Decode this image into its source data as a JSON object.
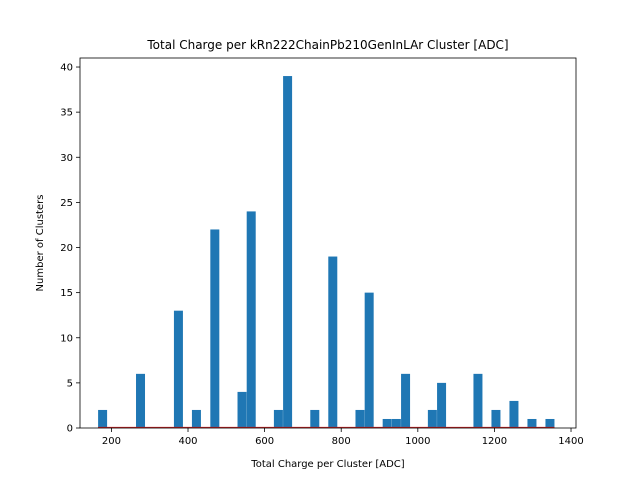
{
  "chart_data": {
    "type": "bar",
    "title": "Total Charge per kRn222ChainPb210GenInLAr Cluster [ADC]",
    "xlabel": "Total Charge per Cluster [ADC]",
    "ylabel": "Number of Clusters",
    "xlim": [
      118,
      1413
    ],
    "ylim": [
      0,
      41
    ],
    "xticks": [
      200,
      400,
      600,
      800,
      1000,
      1200,
      1400
    ],
    "yticks": [
      0,
      5,
      10,
      15,
      20,
      25,
      30,
      35,
      40
    ],
    "bar_color": "#1f77b4",
    "baseline_color": "#d62728",
    "bin_width": 23.5,
    "bins": [
      {
        "x": 177,
        "value": 2
      },
      {
        "x": 276,
        "value": 6
      },
      {
        "x": 375,
        "value": 13
      },
      {
        "x": 422,
        "value": 2
      },
      {
        "x": 470,
        "value": 22
      },
      {
        "x": 541,
        "value": 4
      },
      {
        "x": 565,
        "value": 24
      },
      {
        "x": 636,
        "value": 2
      },
      {
        "x": 660,
        "value": 39
      },
      {
        "x": 731,
        "value": 2
      },
      {
        "x": 778,
        "value": 19
      },
      {
        "x": 849,
        "value": 2
      },
      {
        "x": 873,
        "value": 15
      },
      {
        "x": 920,
        "value": 1
      },
      {
        "x": 944,
        "value": 1
      },
      {
        "x": 968,
        "value": 6
      },
      {
        "x": 1038,
        "value": 2
      },
      {
        "x": 1062,
        "value": 5
      },
      {
        "x": 1157,
        "value": 6
      },
      {
        "x": 1204,
        "value": 2
      },
      {
        "x": 1251,
        "value": 3
      },
      {
        "x": 1298,
        "value": 1
      },
      {
        "x": 1345,
        "value": 1
      }
    ]
  }
}
